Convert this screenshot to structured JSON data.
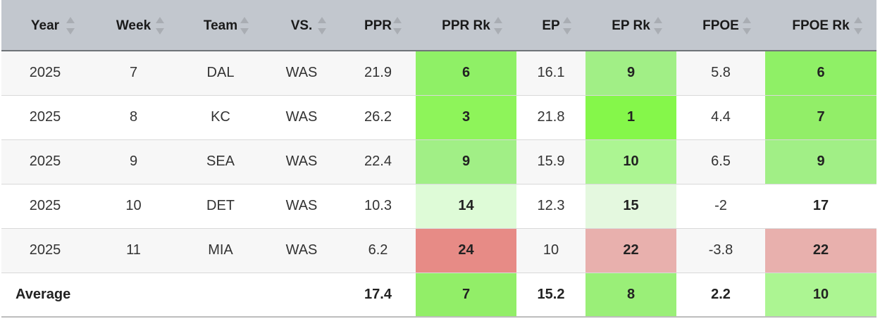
{
  "headers": [
    "Year",
    "Week",
    "Team",
    "VS.",
    "PPR",
    "PPR Rk",
    "EP",
    "EP Rk",
    "FPOE",
    "FPOE Rk"
  ],
  "rows": [
    {
      "year": "2025",
      "week": "7",
      "team": "DAL",
      "vs": "WAS",
      "ppr": "21.9",
      "ppr_rk": "6",
      "ep": "16.1",
      "ep_rk": "9",
      "fpoe": "5.8",
      "fpoe_rk": "6"
    },
    {
      "year": "2025",
      "week": "8",
      "team": "KC",
      "vs": "WAS",
      "ppr": "26.2",
      "ppr_rk": "3",
      "ep": "21.8",
      "ep_rk": "1",
      "fpoe": "4.4",
      "fpoe_rk": "7"
    },
    {
      "year": "2025",
      "week": "9",
      "team": "SEA",
      "vs": "WAS",
      "ppr": "22.4",
      "ppr_rk": "9",
      "ep": "15.9",
      "ep_rk": "10",
      "fpoe": "6.5",
      "fpoe_rk": "9"
    },
    {
      "year": "2025",
      "week": "10",
      "team": "DET",
      "vs": "WAS",
      "ppr": "10.3",
      "ppr_rk": "14",
      "ep": "12.3",
      "ep_rk": "15",
      "fpoe": "-2",
      "fpoe_rk": "17"
    },
    {
      "year": "2025",
      "week": "11",
      "team": "MIA",
      "vs": "WAS",
      "ppr": "6.2",
      "ppr_rk": "24",
      "ep": "10",
      "ep_rk": "22",
      "fpoe": "-3.8",
      "fpoe_rk": "22"
    }
  ],
  "average": {
    "label": "Average",
    "ppr": "17.4",
    "ppr_rk": "7",
    "ep": "15.2",
    "ep_rk": "8",
    "fpoe": "2.2",
    "fpoe_rk": "10"
  },
  "rank_colors": {
    "1": "#85f74a",
    "3": "#8ef45a",
    "6": "#8ff066",
    "7": "#92ee68",
    "8": "#9aef78",
    "9": "#a1ef86",
    "10": "#acf592",
    "14": "#defbd7",
    "15": "#e4f8df",
    "17": "#ffffff",
    "22": "#e8b0ad",
    "24": "#e78b86"
  },
  "rank_colors_rows": {
    "9_row3": "#a4ec8b",
    "10_row3": "#a8ec93"
  }
}
